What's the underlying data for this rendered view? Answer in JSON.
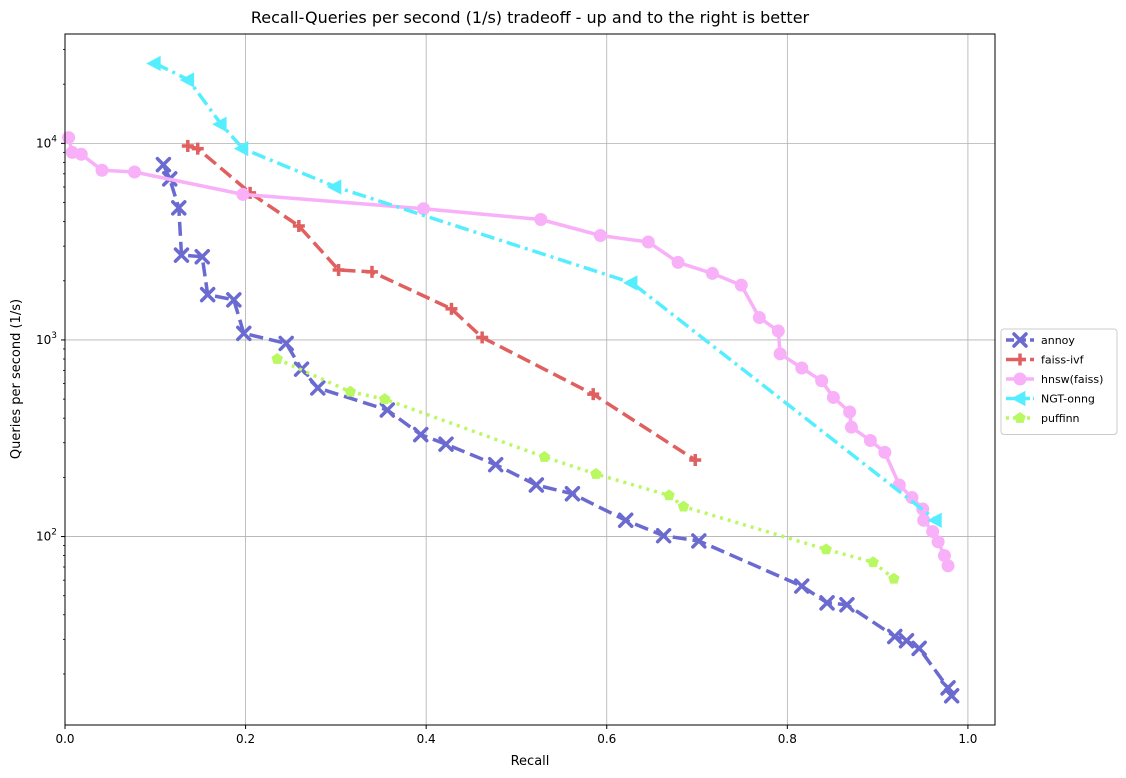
{
  "chart_data": {
    "type": "line",
    "title": "Recall-Queries per second (1/s) tradeoff - up and to the right is better",
    "xlabel": "Recall",
    "ylabel": "Queries per second (1/s)",
    "xlim": [
      0.0,
      1.03
    ],
    "ylim": [
      11,
      36000
    ],
    "yscale": "log",
    "grid": true,
    "legend_position": "right-outside",
    "x_ticks": [
      {
        "value": 0.0,
        "label": "0.0"
      },
      {
        "value": 0.2,
        "label": "0.2"
      },
      {
        "value": 0.4,
        "label": "0.4"
      },
      {
        "value": 0.6,
        "label": "0.6"
      },
      {
        "value": 0.8,
        "label": "0.8"
      },
      {
        "value": 1.0,
        "label": "1.0"
      }
    ],
    "y_ticks": [
      {
        "value": 100,
        "base": "10",
        "exp": "2"
      },
      {
        "value": 1000,
        "base": "10",
        "exp": "3"
      },
      {
        "value": 10000,
        "base": "10",
        "exp": "4"
      }
    ],
    "series": [
      {
        "name": "annoy",
        "color": "#6a6ad0",
        "line_style": "dashed",
        "marker": "x",
        "points": [
          [
            0.109,
            7800
          ],
          [
            0.116,
            6600
          ],
          [
            0.126,
            4700
          ],
          [
            0.129,
            2700
          ],
          [
            0.152,
            2650
          ],
          [
            0.158,
            1700
          ],
          [
            0.187,
            1600
          ],
          [
            0.198,
            1080
          ],
          [
            0.245,
            960
          ],
          [
            0.262,
            710
          ],
          [
            0.28,
            570
          ],
          [
            0.357,
            440
          ],
          [
            0.394,
            330
          ],
          [
            0.422,
            295
          ],
          [
            0.477,
            232
          ],
          [
            0.522,
            183
          ],
          [
            0.562,
            165
          ],
          [
            0.621,
            121
          ],
          [
            0.663,
            101
          ],
          [
            0.702,
            95
          ],
          [
            0.816,
            56
          ],
          [
            0.844,
            46
          ],
          [
            0.866,
            45
          ],
          [
            0.919,
            31
          ],
          [
            0.932,
            29.5
          ],
          [
            0.946,
            27
          ],
          [
            0.978,
            17
          ],
          [
            0.982,
            15.5
          ]
        ]
      },
      {
        "name": "faiss-ivf",
        "color": "#e06060",
        "line_style": "dashed",
        "marker": "plus",
        "points": [
          [
            0.136,
            9700
          ],
          [
            0.147,
            9400
          ],
          [
            0.205,
            5600
          ],
          [
            0.259,
            3800
          ],
          [
            0.303,
            2270
          ],
          [
            0.34,
            2220
          ],
          [
            0.428,
            1440
          ],
          [
            0.462,
            1030
          ],
          [
            0.585,
            530
          ],
          [
            0.698,
            245
          ]
        ]
      },
      {
        "name": "hnsw(faiss)",
        "color": "#f8b0f8",
        "line_style": "solid",
        "marker": "circle",
        "points": [
          [
            0.004,
            10700
          ],
          [
            0.008,
            9000
          ],
          [
            0.018,
            8800
          ],
          [
            0.041,
            7300
          ],
          [
            0.077,
            7150
          ],
          [
            0.197,
            5500
          ],
          [
            0.397,
            4650
          ],
          [
            0.527,
            4100
          ],
          [
            0.593,
            3400
          ],
          [
            0.646,
            3150
          ],
          [
            0.679,
            2480
          ],
          [
            0.717,
            2180
          ],
          [
            0.749,
            1900
          ],
          [
            0.769,
            1300
          ],
          [
            0.79,
            1110
          ],
          [
            0.792,
            850
          ],
          [
            0.816,
            720
          ],
          [
            0.838,
            620
          ],
          [
            0.851,
            510
          ],
          [
            0.869,
            430
          ],
          [
            0.871,
            360
          ],
          [
            0.892,
            308
          ],
          [
            0.908,
            268
          ],
          [
            0.924,
            183
          ],
          [
            0.938,
            158
          ],
          [
            0.95,
            138
          ],
          [
            0.951,
            121
          ],
          [
            0.961,
            106
          ],
          [
            0.967,
            94
          ],
          [
            0.974,
            80
          ],
          [
            0.978,
            71
          ]
        ]
      },
      {
        "name": "NGT-onng",
        "color": "#55eeff",
        "line_style": "dashdot",
        "marker": "triangle-left",
        "points": [
          [
            0.1,
            25500
          ],
          [
            0.137,
            21000
          ],
          [
            0.173,
            12500
          ],
          [
            0.197,
            9400
          ],
          [
            0.3,
            6000
          ],
          [
            0.628,
            1950
          ],
          [
            0.965,
            121
          ]
        ]
      },
      {
        "name": "puffinn",
        "color": "#b8f860",
        "line_style": "dotted",
        "marker": "pentagon",
        "points": [
          [
            0.235,
            800
          ],
          [
            0.316,
            545
          ],
          [
            0.354,
            500
          ],
          [
            0.531,
            254
          ],
          [
            0.588,
            208
          ],
          [
            0.669,
            162
          ],
          [
            0.685,
            142
          ],
          [
            0.843,
            86
          ],
          [
            0.895,
            74
          ],
          [
            0.918,
            61
          ]
        ]
      }
    ]
  }
}
